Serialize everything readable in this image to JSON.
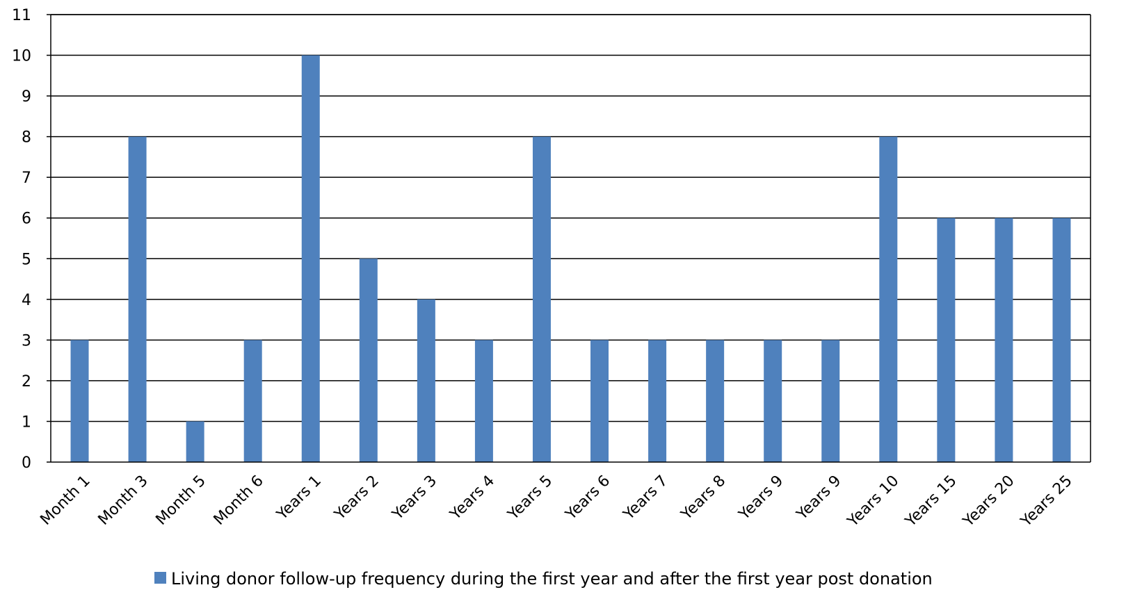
{
  "chart_data": {
    "type": "bar",
    "categories": [
      "Month 1",
      "Month 3",
      "Month 5",
      "Month 6",
      "Years 1",
      "Years 2",
      "Years 3",
      "Years 4",
      "Years 5",
      "Years 6",
      "Years 7",
      "Years 8",
      "Years 9",
      "Years 9",
      "Years 10",
      "Years 15",
      "Years 20",
      "Years 25"
    ],
    "series": [
      {
        "name": "Living donor follow-up frequency during the first year and after the first year post donation",
        "values": [
          3,
          8,
          1,
          3,
          10,
          5,
          4,
          3,
          8,
          3,
          3,
          3,
          3,
          3,
          8,
          6,
          6,
          6
        ],
        "color": "#4f81bd"
      }
    ],
    "yticks": [
      0,
      1,
      2,
      3,
      4,
      5,
      6,
      7,
      8,
      9,
      10,
      11
    ],
    "ylim": [
      0,
      11
    ],
    "grid": true,
    "legend_position": "bottom"
  }
}
